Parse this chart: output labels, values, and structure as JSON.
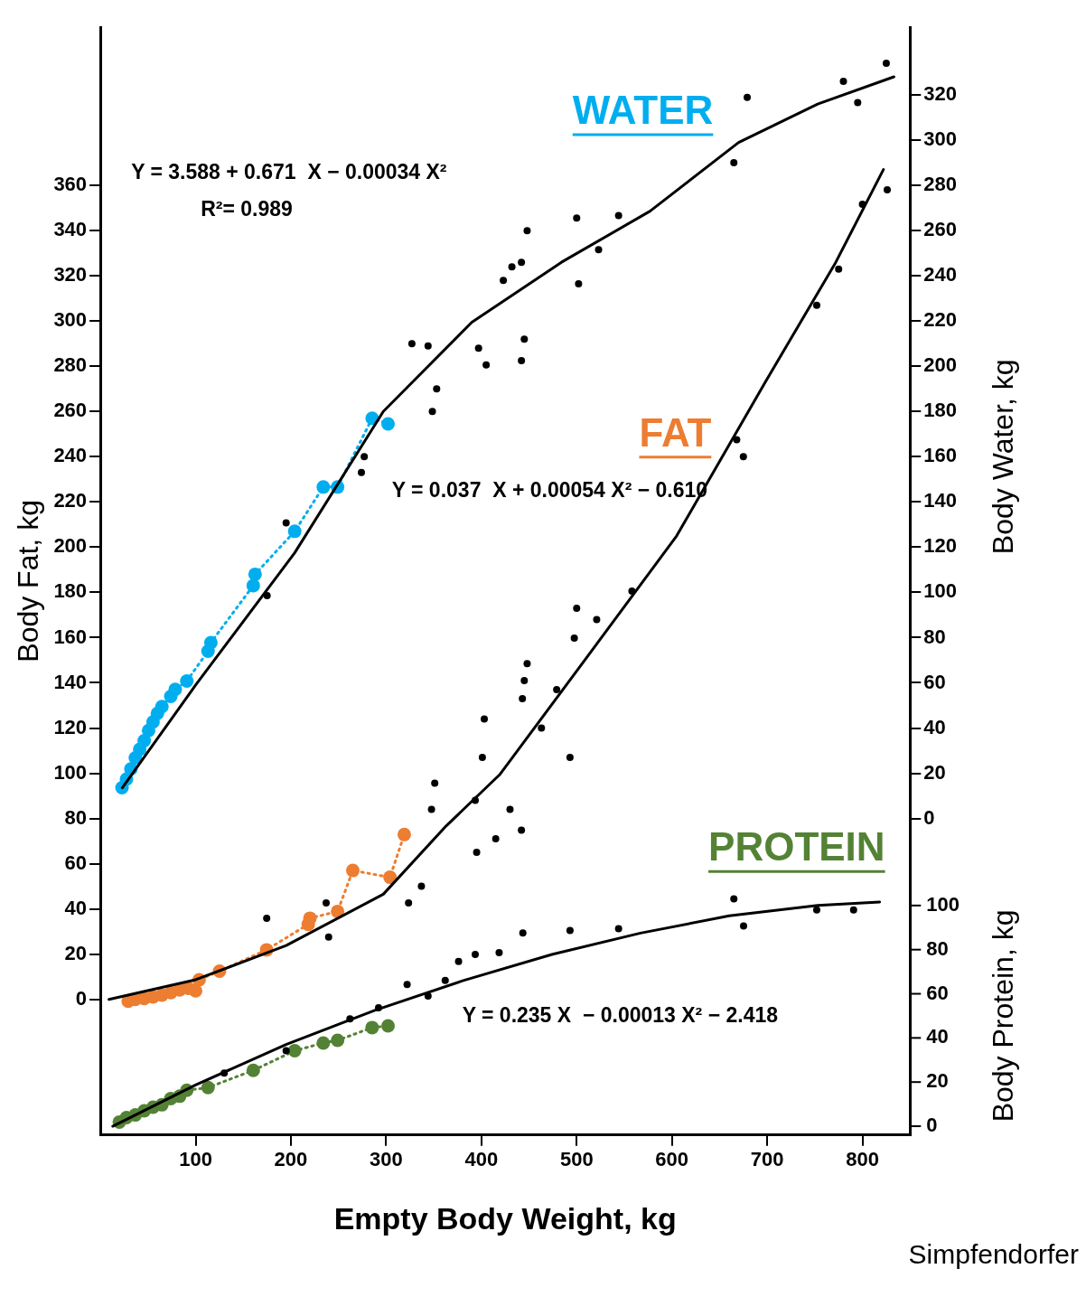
{
  "chart_data": {
    "type": "scatter",
    "xlabel": "Empty Body Weight, kg",
    "ylabel": "Body Fat, kg",
    "y2label": "Body Water, kg",
    "y3label": "Body Protein, kg",
    "xlim": [
      0,
      850
    ],
    "xticks": [
      100,
      200,
      300,
      400,
      500,
      600,
      700,
      800
    ],
    "ylim": [
      -60,
      430
    ],
    "yticks": [
      0,
      20,
      40,
      60,
      80,
      100,
      120,
      140,
      160,
      180,
      200,
      220,
      240,
      260,
      280,
      300,
      320,
      340,
      360
    ],
    "y2lim": [
      -140,
      350
    ],
    "y2ticks": [
      0,
      20,
      40,
      60,
      80,
      100,
      120,
      140,
      160,
      180,
      200,
      220,
      240,
      260,
      280,
      300,
      320
    ],
    "y3lim": [
      -4,
      498
    ],
    "y3ticks": [
      0,
      20,
      40,
      60,
      80,
      100
    ],
    "grid": false,
    "legend": false,
    "marker": "circle",
    "series": [
      {
        "type": "line",
        "axis": "y2",
        "color": "#000000",
        "marker": "none",
        "line_style": "solid",
        "x": [
          23,
          100,
          204,
          297,
          390,
          484,
          577,
          670,
          753,
          833
        ],
        "values": [
          13.6,
          59,
          117.5,
          180,
          219.5,
          246,
          268.6,
          299,
          316,
          328
        ]
      },
      {
        "axis": "y2",
        "color": "#000000",
        "x": [
          448,
          500,
          544,
          665,
          679,
          780,
          795,
          825,
          397,
          405,
          442,
          445,
          442,
          423,
          432,
          502,
          523,
          327,
          344,
          353,
          348.5,
          274,
          277,
          195,
          175
        ],
        "values": [
          260,
          265.6,
          266.7,
          290,
          318.9,
          326,
          316.6,
          334,
          208,
          200.6,
          246,
          212,
          202.5,
          238,
          244,
          236.5,
          251.6,
          210,
          209,
          190,
          180,
          153,
          160,
          130.7,
          98.6
        ]
      },
      {
        "type": "line",
        "axis": "y2",
        "name": "WATER",
        "color": "#00aeef",
        "line_style": "dotted",
        "x": [
          22.7,
          27.4,
          32,
          36.7,
          41.3,
          46,
          50.6,
          55.3,
          59.9,
          64.6,
          73.9,
          78.6,
          90.7,
          113,
          116,
          160.5,
          162.4,
          204,
          234,
          249,
          285.3,
          302
        ],
        "values": [
          13.6,
          17.4,
          21.9,
          26.8,
          30.6,
          34.4,
          38.9,
          42.7,
          46.5,
          49.5,
          54,
          57.1,
          60.8,
          74,
          77.8,
          103,
          108,
          127,
          146.6,
          146.6,
          177,
          174.5
        ]
      },
      {
        "type": "line",
        "axis": "y",
        "color": "#000000",
        "marker": "none",
        "line_style": "solid",
        "x": [
          9,
          100,
          195,
          297,
          363,
          419,
          512,
          605,
          698,
          772,
          822
        ],
        "values": [
          0,
          8.7,
          23.8,
          46.5,
          76.7,
          99.3,
          152,
          205,
          273,
          326,
          367
        ]
      },
      {
        "axis": "y",
        "color": "#000000",
        "x": [
          826,
          800,
          752,
          775,
          675,
          668,
          558,
          521,
          500,
          497.5,
          493,
          463,
          479,
          448,
          445,
          443,
          442,
          430,
          415,
          395,
          393.5,
          403,
          401,
          351,
          347.6,
          337,
          323.5,
          239.6,
          174.6,
          237
        ],
        "values": [
          358,
          351.7,
          307,
          323,
          240,
          247.5,
          180.6,
          168,
          173,
          159.8,
          107,
          120,
          137,
          148.5,
          141,
          133,
          74.8,
          84,
          71,
          65,
          88,
          124,
          107,
          95.6,
          84,
          50,
          42.7,
          27.6,
          35.9,
          42.7
        ]
      },
      {
        "type": "line",
        "axis": "y",
        "name": "FAT",
        "color": "#ed7d31",
        "line_style": "dotted",
        "x": [
          29.2,
          36.7,
          46,
          55.3,
          64.6,
          73.9,
          83.2,
          92.5,
          100,
          103.7,
          125.1,
          174.5,
          218.2,
          220,
          249,
          265,
          304,
          319
        ],
        "values": [
          -0.8,
          0,
          0.4,
          1.1,
          1.9,
          3,
          4.2,
          4.9,
          3.8,
          8.7,
          12.5,
          21.9,
          33.2,
          35.9,
          38.9,
          57,
          54,
          72.9
        ]
      },
      {
        "type": "line",
        "axis": "y3",
        "color": "#000000",
        "marker": "none",
        "line_style": "solid",
        "x": [
          13,
          100,
          195,
          288,
          381,
          474,
          567,
          660,
          753,
          818
        ],
        "values": [
          0,
          18.7,
          37,
          52.5,
          66,
          77.8,
          87.5,
          95.3,
          100,
          101.6
        ]
      },
      {
        "axis": "y3",
        "color": "#000000",
        "x": [
          665,
          675.2,
          790.7,
          752,
          544,
          493,
          443.5,
          418.6,
          393.5,
          344,
          322,
          292,
          262,
          195,
          130,
          362,
          376
        ],
        "values": [
          103,
          90.7,
          98,
          98,
          89.5,
          88.7,
          87.5,
          78.6,
          77.8,
          59,
          64.2,
          53.7,
          48.6,
          34.2,
          24.1,
          66,
          74.7
        ]
      },
      {
        "type": "line",
        "axis": "y3",
        "name": "PROTEIN",
        "color": "#548235",
        "line_style": "dotted",
        "x": [
          19.9,
          27.4,
          36.7,
          46,
          55.3,
          64.6,
          73.9,
          83.2,
          90.7,
          113,
          160.5,
          204,
          234,
          249,
          285.3,
          302
        ],
        "values": [
          1.9,
          3.9,
          5.1,
          7,
          8.6,
          9.7,
          12.5,
          13.6,
          16.3,
          17.5,
          25.3,
          34.2,
          37.7,
          38.9,
          44.7,
          45.5
        ]
      }
    ],
    "annotations": [
      "Y = 3.588 + 0.671  X − 0.00034 X²",
      "R²= 0.989",
      "Y = 0.037  X + 0.00054 X² − 0.610",
      "Y = 0.235 X  − 0.00013 X² − 2.418",
      "Simpfendorfer"
    ]
  }
}
